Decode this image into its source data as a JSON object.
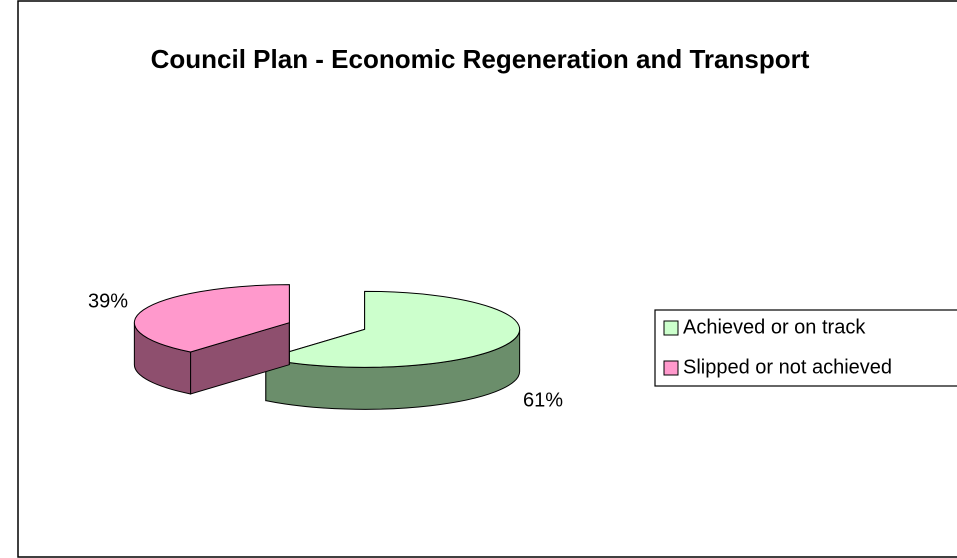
{
  "chart_data": {
    "type": "pie3d",
    "title": "Council Plan - Economic Regeneration and Transport",
    "categories": [
      "Achieved or on track",
      "Slipped or not achieved"
    ],
    "values": [
      61,
      39
    ],
    "value_labels": [
      "61%",
      "39%"
    ],
    "colors": [
      "#ccffcc",
      "#ff99cc"
    ],
    "side_colors": [
      "#6b8e6b",
      "#8e4f6e"
    ],
    "legend": "right"
  }
}
